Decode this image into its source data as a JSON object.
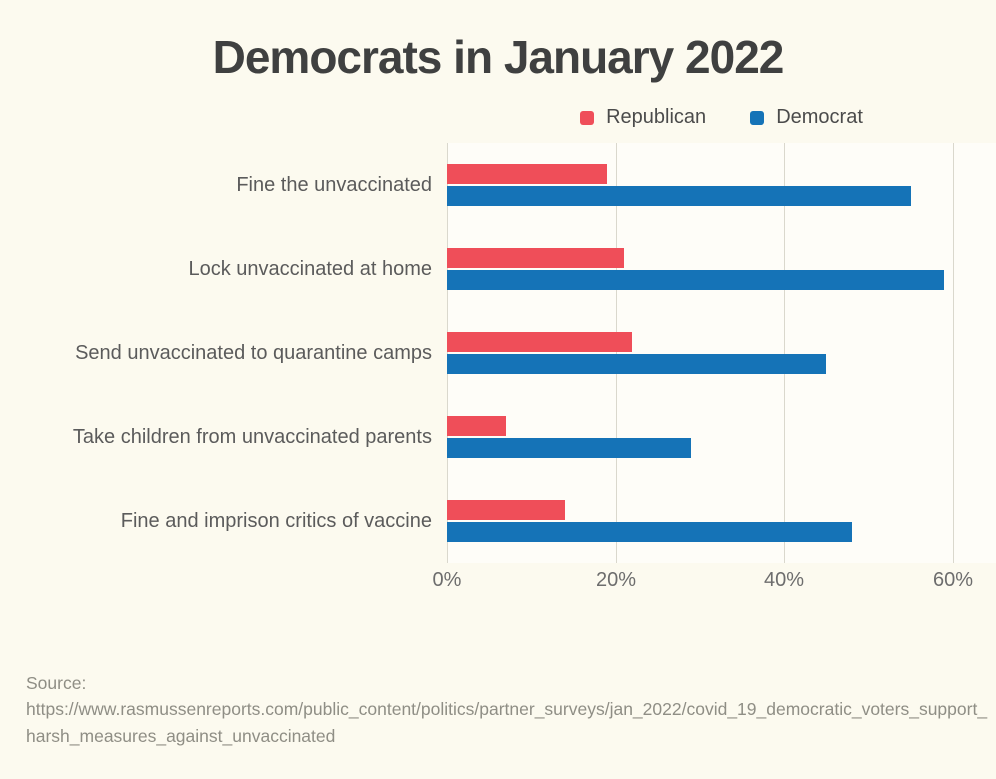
{
  "title": "Democrats in January 2022",
  "legend": {
    "items": [
      {
        "label": "Republican",
        "color": "#EF4E59"
      },
      {
        "label": "Democrat",
        "color": "#1573B7"
      }
    ]
  },
  "source": {
    "label": "Source:",
    "url": "https://www.rasmussenreports.com/public_content/politics/partner_surveys/jan_2022/covid_19_democratic_voters_support_harsh_measures_against_unvaccinated"
  },
  "chart_data": {
    "type": "bar",
    "orientation": "horizontal",
    "title": "Democrats in January 2022",
    "categories": [
      "Fine the unvaccinated",
      "Lock unvaccinated at home",
      "Send unvaccinated to quarantine camps",
      "Take children from unvaccinated parents",
      "Fine and imprison critics of vaccine"
    ],
    "series": [
      {
        "name": "Republican",
        "color": "#EF4E59",
        "values": [
          19,
          21,
          22,
          7,
          14
        ]
      },
      {
        "name": "Democrat",
        "color": "#1573B7",
        "values": [
          55,
          59,
          45,
          29,
          48
        ]
      }
    ],
    "xlabel": "",
    "ylabel": "",
    "x_ticks": [
      "0%",
      "20%",
      "40%",
      "60%"
    ],
    "x_tick_values": [
      0,
      20,
      40,
      60
    ],
    "xlim": [
      0,
      65
    ],
    "grid": true,
    "legend_position": "top",
    "unit": "percent"
  }
}
